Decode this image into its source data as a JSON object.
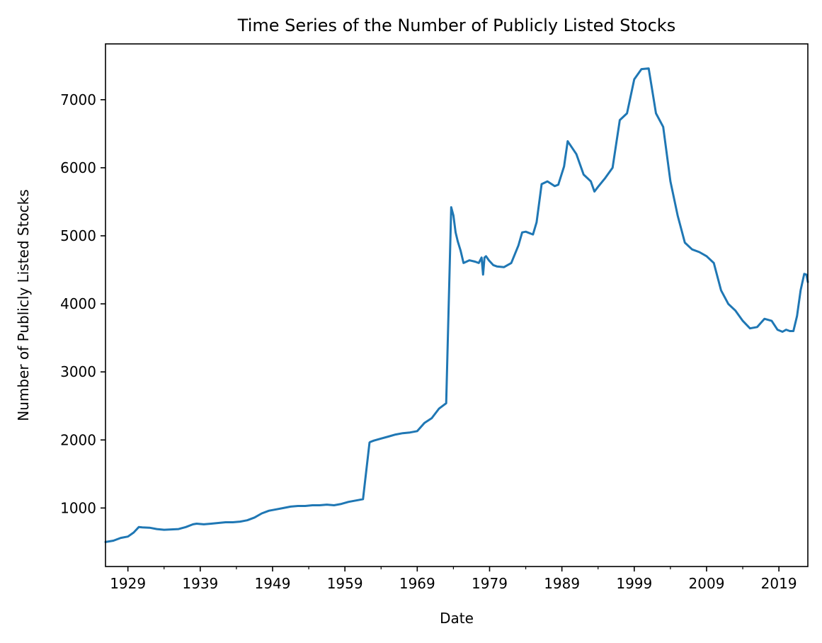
{
  "chart_data": {
    "type": "line",
    "title": "Time Series of the Number of Publicly Listed Stocks",
    "xlabel": "Date",
    "ylabel": "Number of Publicly Listed Stocks",
    "xlim": [
      1925.9,
      2023.0
    ],
    "ylim": [
      140,
      7820
    ],
    "x_major_ticks": [
      1929,
      1939,
      1949,
      1959,
      1969,
      1979,
      1989,
      1999,
      2009,
      2019
    ],
    "x_tick_labels": [
      "1929",
      "1939",
      "1949",
      "1959",
      "1969",
      "1979",
      "1989",
      "1999",
      "2009",
      "2019"
    ],
    "x_minor_ticks": [
      1934,
      1944,
      1954,
      1964,
      1974,
      1984,
      1994,
      2004,
      2014
    ],
    "y_ticks": [
      1000,
      2000,
      3000,
      4000,
      5000,
      6000,
      7000
    ],
    "y_tick_labels": [
      "1000",
      "2000",
      "3000",
      "4000",
      "5000",
      "6000",
      "7000"
    ],
    "grid": false,
    "line_color": "#1f77b4",
    "series": [
      {
        "x": [
          1925.9,
          1927.0,
          1928.0,
          1929.0,
          1929.8,
          1930.5,
          1931.0,
          1932.0,
          1933.0,
          1934.0,
          1935.0,
          1936.0,
          1937.0,
          1938.0,
          1938.5,
          1939.5,
          1940.5,
          1941.5,
          1942.5,
          1943.5,
          1944.5,
          1945.5,
          1946.5,
          1947.5,
          1948.5,
          1949.5,
          1950.5,
          1951.5,
          1952.5,
          1953.5,
          1954.5,
          1955.5,
          1956.5,
          1957.5,
          1958.5,
          1959.5,
          1960.5,
          1961.5,
          1962.4,
          1962.5,
          1963.0,
          1964.0,
          1965.0,
          1966.0,
          1967.0,
          1968.0,
          1969.0,
          1970.0,
          1971.0,
          1972.0,
          1973.0,
          1973.7,
          1974.0,
          1974.3,
          1974.6,
          1975.0,
          1975.4,
          1976.2,
          1977.0,
          1977.5,
          1977.9,
          1978.1,
          1978.3,
          1978.5,
          1978.9,
          1979.5,
          1980.0,
          1981.0,
          1982.0,
          1983.0,
          1983.5,
          1984.0,
          1985.0,
          1985.5,
          1986.2,
          1987.0,
          1988.0,
          1988.5,
          1989.3,
          1989.8,
          1991.0,
          1992.0,
          1993.0,
          1993.5,
          1994.0,
          1995.0,
          1996.0,
          1997.0,
          1998.0,
          1999.0,
          2000.0,
          2001.0,
          2002.0,
          2003.0,
          2004.0,
          2005.0,
          2006.0,
          2007.0,
          2008.0,
          2009.0,
          2010.0,
          2011.0,
          2012.0,
          2013.0,
          2014.0,
          2015.0,
          2016.0,
          2017.0,
          2018.0,
          2018.8,
          2019.5,
          2020.0,
          2020.5,
          2021.0,
          2021.5,
          2022.0,
          2022.5,
          2022.8,
          2023.0
        ],
        "values": [
          500,
          520,
          560,
          580,
          640,
          720,
          715,
          710,
          690,
          680,
          685,
          690,
          720,
          760,
          770,
          760,
          770,
          780,
          790,
          790,
          800,
          820,
          860,
          920,
          960,
          980,
          1000,
          1020,
          1030,
          1030,
          1040,
          1040,
          1050,
          1040,
          1060,
          1090,
          1110,
          1130,
          1960,
          1970,
          1990,
          2020,
          2050,
          2080,
          2100,
          2110,
          2130,
          2250,
          2320,
          2460,
          2540,
          5420,
          5300,
          5050,
          4920,
          4780,
          4600,
          4640,
          4620,
          4600,
          4680,
          4430,
          4680,
          4700,
          4640,
          4570,
          4550,
          4540,
          4600,
          4860,
          5050,
          5060,
          5020,
          5200,
          5760,
          5800,
          5730,
          5750,
          6020,
          6390,
          6200,
          5900,
          5800,
          5650,
          5720,
          5850,
          6000,
          6700,
          6800,
          7300,
          7450,
          7460,
          6800,
          6600,
          5800,
          5300,
          4900,
          4800,
          4760,
          4700,
          4600,
          4200,
          4000,
          3900,
          3750,
          3640,
          3660,
          3780,
          3750,
          3620,
          3590,
          3620,
          3600,
          3600,
          3820,
          4200,
          4440,
          4430,
          4320
        ]
      }
    ]
  }
}
